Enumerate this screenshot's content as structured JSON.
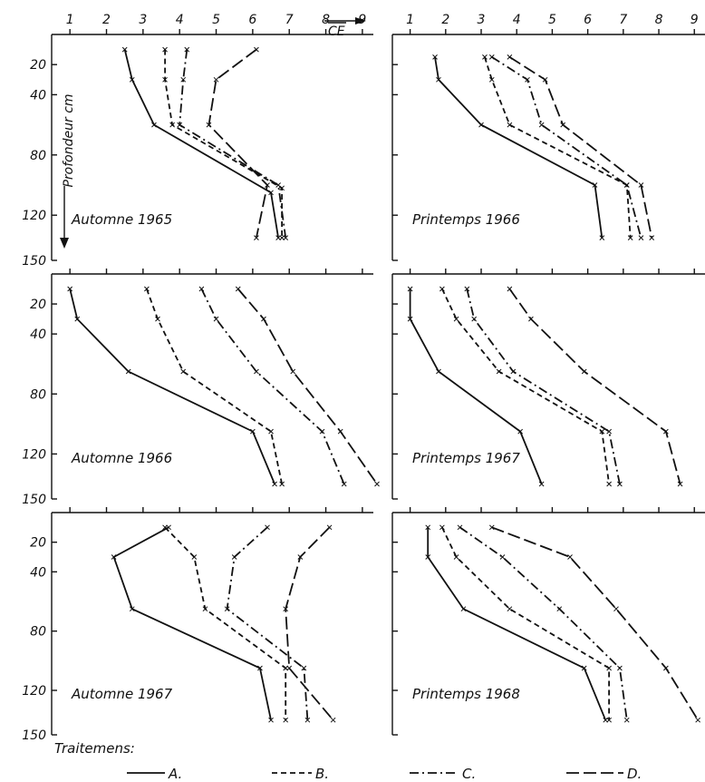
{
  "chart_data": {
    "type": "line",
    "orientation": "profile (x = CE, y = depth increasing downward)",
    "x_ticks": [
      "1",
      "2",
      "3",
      "4",
      "5",
      "6",
      "7",
      "8",
      "9"
    ],
    "y_ticks": [
      "20",
      "40",
      "80",
      "120",
      "150"
    ],
    "xlim": [
      0.5,
      9.3
    ],
    "ylim": [
      0,
      150
    ],
    "top_axis_label": "CE",
    "ylabel": "Profondeur cm",
    "legend_title": "Traitemens:",
    "legend": [
      {
        "key": "A",
        "label": "A.",
        "style": "solid"
      },
      {
        "key": "B",
        "label": "B.",
        "style": "dashed"
      },
      {
        "key": "C",
        "label": "C.",
        "style": "dashdot"
      },
      {
        "key": "D",
        "label": "D.",
        "style": "longdash"
      }
    ],
    "panels": [
      {
        "title": "Automne 1965",
        "series": {
          "A": [
            [
              2.5,
              10
            ],
            [
              2.7,
              30
            ],
            [
              3.3,
              60
            ],
            [
              6.5,
              105
            ],
            [
              6.7,
              135
            ]
          ],
          "B": [
            [
              3.6,
              10
            ],
            [
              3.6,
              30
            ],
            [
              3.8,
              60
            ],
            [
              6.8,
              102
            ],
            [
              6.8,
              135
            ]
          ],
          "C": [
            [
              4.2,
              10
            ],
            [
              4.1,
              30
            ],
            [
              4.0,
              60
            ],
            [
              6.7,
              100
            ],
            [
              6.9,
              135
            ]
          ],
          "D": [
            [
              6.1,
              10
            ],
            [
              5.0,
              30
            ],
            [
              4.8,
              60
            ],
            [
              6.4,
              100
            ],
            [
              6.1,
              135
            ]
          ]
        }
      },
      {
        "title": "Printemps 1966",
        "series": {
          "A": [
            [
              1.7,
              15
            ],
            [
              1.8,
              30
            ],
            [
              3.0,
              60
            ],
            [
              6.2,
              100
            ],
            [
              6.4,
              135
            ]
          ],
          "B": [
            [
              3.1,
              15
            ],
            [
              3.3,
              30
            ],
            [
              3.8,
              60
            ],
            [
              7.1,
              100
            ],
            [
              7.2,
              135
            ]
          ],
          "C": [
            [
              3.3,
              15
            ],
            [
              4.3,
              30
            ],
            [
              4.7,
              60
            ],
            [
              7.1,
              100
            ],
            [
              7.5,
              135
            ]
          ],
          "D": [
            [
              3.8,
              15
            ],
            [
              4.8,
              30
            ],
            [
              5.3,
              60
            ],
            [
              7.5,
              100
            ],
            [
              7.8,
              135
            ]
          ]
        }
      },
      {
        "title": "Automne 1966",
        "series": {
          "A": [
            [
              1.0,
              10
            ],
            [
              1.2,
              30
            ],
            [
              2.6,
              65
            ],
            [
              6.0,
              105
            ],
            [
              6.6,
              140
            ]
          ],
          "B": [
            [
              3.1,
              10
            ],
            [
              3.4,
              30
            ],
            [
              4.1,
              65
            ],
            [
              6.5,
              105
            ],
            [
              6.8,
              140
            ]
          ],
          "C": [
            [
              4.6,
              10
            ],
            [
              5.0,
              30
            ],
            [
              6.1,
              65
            ],
            [
              7.9,
              105
            ],
            [
              8.5,
              140
            ]
          ],
          "D": [
            [
              5.6,
              10
            ],
            [
              6.3,
              30
            ],
            [
              7.1,
              65
            ],
            [
              8.4,
              105
            ],
            [
              9.4,
              140
            ]
          ]
        }
      },
      {
        "title": "Printemps 1967",
        "series": {
          "A": [
            [
              1.0,
              10
            ],
            [
              1.0,
              30
            ],
            [
              1.8,
              65
            ],
            [
              4.1,
              105
            ],
            [
              4.7,
              140
            ]
          ],
          "B": [
            [
              1.9,
              10
            ],
            [
              2.3,
              30
            ],
            [
              3.5,
              65
            ],
            [
              6.4,
              105
            ],
            [
              6.6,
              140
            ]
          ],
          "C": [
            [
              2.6,
              10
            ],
            [
              2.8,
              30
            ],
            [
              3.9,
              65
            ],
            [
              6.6,
              105
            ],
            [
              6.9,
              140
            ]
          ],
          "D": [
            [
              3.8,
              10
            ],
            [
              4.4,
              30
            ],
            [
              5.9,
              65
            ],
            [
              8.2,
              105
            ],
            [
              8.6,
              140
            ]
          ]
        }
      },
      {
        "title": "Automne 1967",
        "series": {
          "A": [
            [
              3.7,
              10
            ],
            [
              2.2,
              30
            ],
            [
              2.7,
              65
            ],
            [
              6.2,
              105
            ],
            [
              6.5,
              140
            ]
          ],
          "B": [
            [
              3.6,
              10
            ],
            [
              4.4,
              30
            ],
            [
              4.7,
              65
            ],
            [
              6.9,
              105
            ],
            [
              6.9,
              140
            ]
          ],
          "C": [
            [
              6.4,
              10
            ],
            [
              5.5,
              30
            ],
            [
              5.3,
              65
            ],
            [
              7.4,
              105
            ],
            [
              7.5,
              140
            ]
          ],
          "D": [
            [
              8.1,
              10
            ],
            [
              7.3,
              30
            ],
            [
              6.9,
              65
            ],
            [
              7.0,
              105
            ],
            [
              8.2,
              140
            ]
          ]
        }
      },
      {
        "title": "Printemps 1968",
        "series": {
          "A": [
            [
              1.5,
              10
            ],
            [
              1.5,
              30
            ],
            [
              2.5,
              65
            ],
            [
              5.9,
              105
            ],
            [
              6.5,
              140
            ]
          ],
          "B": [
            [
              1.9,
              10
            ],
            [
              2.3,
              30
            ],
            [
              3.8,
              65
            ],
            [
              6.6,
              105
            ],
            [
              6.6,
              140
            ]
          ],
          "C": [
            [
              2.4,
              10
            ],
            [
              3.6,
              30
            ],
            [
              5.2,
              65
            ],
            [
              6.9,
              105
            ],
            [
              7.1,
              140
            ]
          ],
          "D": [
            [
              3.3,
              10
            ],
            [
              5.5,
              30
            ],
            [
              6.8,
              65
            ],
            [
              8.2,
              105
            ],
            [
              9.1,
              140
            ]
          ]
        }
      }
    ]
  }
}
